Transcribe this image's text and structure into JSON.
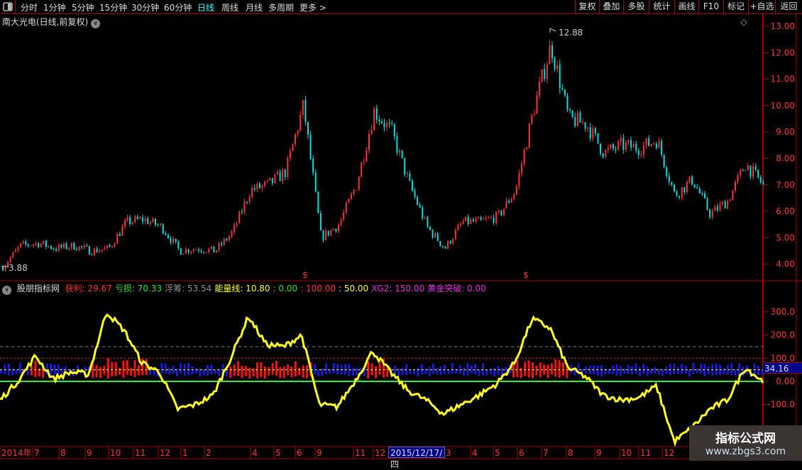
{
  "toolbar": {
    "periods": [
      "分时",
      "1分钟",
      "5分钟",
      "15分钟",
      "30分钟",
      "60分钟",
      "日线",
      "周线",
      "月线",
      "多周期",
      "更多 >"
    ],
    "active_period": "日线",
    "right_buttons": [
      "复权",
      "叠加",
      "多股",
      "统计",
      "画线",
      "F10",
      "标记",
      "+自选",
      "返回"
    ]
  },
  "main_chart": {
    "title": "南大光电(日线,前复权)",
    "high_label": "12.88",
    "low_label": "3.88",
    "y_ticks": [
      "13.00",
      "12.00",
      "11.00",
      "10.00",
      "9.00",
      "8.00",
      "7.00",
      "6.00",
      "5.00",
      "4.00"
    ],
    "colors": {
      "up": "#ff3333",
      "down": "#00e0e0"
    }
  },
  "chart_data": [
    {
      "type": "candlestick",
      "title": "南大光电(日线,前复权)",
      "ylim": [
        3.6,
        13.1
      ],
      "approx_close": [
        3.9,
        4.7,
        4.8,
        4.6,
        4.7,
        4.5,
        4.6,
        5.6,
        5.7,
        5.4,
        4.5,
        4.6,
        4.5,
        5.2,
        6.8,
        7.0,
        7.5,
        10.0,
        5.0,
        5.5,
        7.0,
        9.8,
        9.0,
        7.0,
        5.4,
        4.6,
        5.6,
        5.6,
        5.8,
        6.8,
        9.8,
        12.3,
        9.5,
        9.3,
        8.2,
        8.5,
        8.4,
        8.7,
        6.6,
        7.2,
        5.9,
        6.4,
        7.8,
        7.0
      ],
      "max": 12.88,
      "min": 3.88
    },
    {
      "type": "line",
      "title": "股朋指标网",
      "ylim": [
        -270,
        400
      ],
      "reference_lines": [
        0,
        50,
        100,
        150
      ],
      "series_yellow": [
        -80,
        0,
        110,
        10,
        40,
        30,
        300,
        220,
        80,
        40,
        -120,
        -100,
        -60,
        100,
        280,
        160,
        150,
        200,
        -100,
        -110,
        0,
        130,
        40,
        -40,
        -80,
        -140,
        -100,
        -60,
        -10,
        80,
        270,
        230,
        60,
        20,
        -60,
        -80,
        -70,
        -20,
        -260,
        -200,
        -120,
        -80,
        60,
        0
      ],
      "current": 34.16
    }
  ],
  "indicator": {
    "name": "股朋指标网",
    "legend": [
      {
        "label": "获利: 29.67",
        "color": "#ff3030"
      },
      {
        "label": "亏损: 70.33",
        "color": "#30e030"
      },
      {
        "label": "浮筹: 53.54",
        "color": "#909090"
      },
      {
        "label": "能量线: 10.80",
        "color": "#ffff30"
      },
      {
        "label": ": 0.00",
        "color": "#30e030"
      },
      {
        "label": ": 100.00",
        "color": "#ff3030"
      },
      {
        "label": ": 50.00",
        "color": "#ffff30"
      },
      {
        "label": "XG2: 150.00",
        "color": "#e030e0"
      },
      {
        "label": "黄金突破: 0.00",
        "color": "#e030e0"
      }
    ],
    "y_ticks": [
      "300.0",
      "200.0",
      "100.0",
      "0.00",
      "-100.0"
    ],
    "current_value": "34.16"
  },
  "time_axis": {
    "labels": [
      "2014年",
      "7",
      "8",
      "9",
      "10",
      "11",
      "12",
      "1",
      "2",
      "4",
      "5",
      "6",
      "9",
      "11",
      "12",
      "3",
      "4",
      "5",
      "6",
      "7",
      "8",
      "9",
      "10",
      "11",
      "12"
    ],
    "cursor_date": "2015/12/17/四"
  },
  "watermark": {
    "title": "指标公式网",
    "url": "www.zbgs3.com"
  }
}
